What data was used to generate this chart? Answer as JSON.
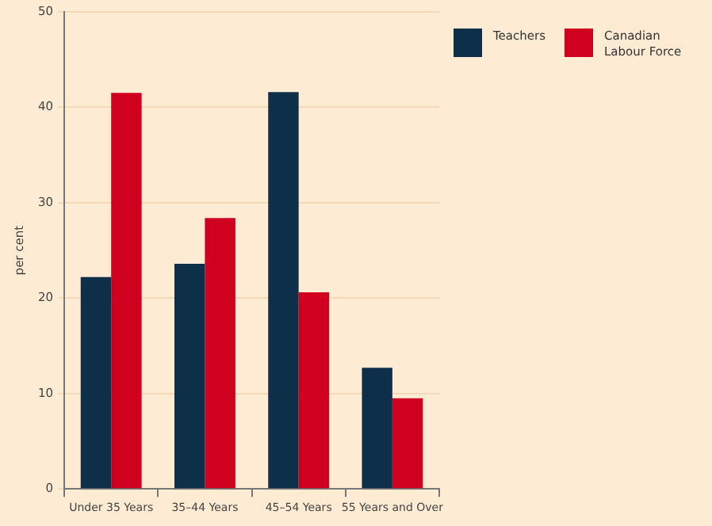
{
  "chart_data": {
    "type": "bar",
    "categories": [
      "Under 35 Years",
      "35–44 Years",
      "45–54 Years",
      "55 Years and Over"
    ],
    "series": [
      {
        "name": "Teachers",
        "color": "#0d2f4a",
        "values": [
          22.2,
          23.6,
          41.6,
          12.7
        ]
      },
      {
        "name": "Canadian Labour Force",
        "color": "#d0001f",
        "values": [
          41.5,
          28.4,
          20.6,
          9.5
        ]
      }
    ],
    "ylabel": "per cent",
    "ylim": [
      0,
      50
    ],
    "yticks": [
      0,
      10,
      20,
      30,
      40,
      50
    ],
    "grid": "y",
    "legend": "top right"
  }
}
